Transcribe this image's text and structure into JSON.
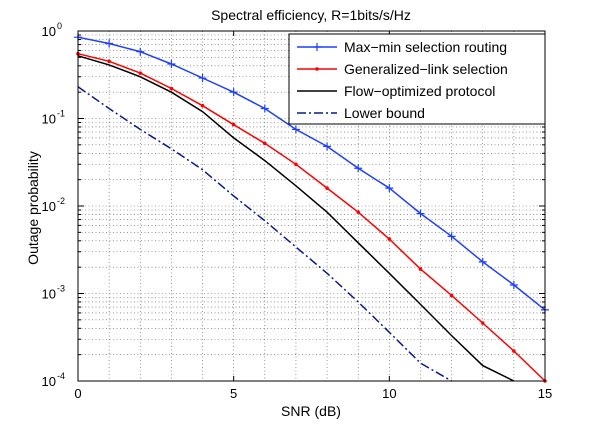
{
  "chart_data": {
    "type": "line",
    "title": "Spectral efficiency, R=1bits/s/Hz",
    "xlabel": "SNR (dB)",
    "ylabel": "Outage probability",
    "xlim": [
      0,
      15
    ],
    "ylim": [
      0.0001,
      1
    ],
    "yscale": "log",
    "grid": true,
    "legend_position": "top-right",
    "x_ticks": [
      {
        "value": 0,
        "label": "0"
      },
      {
        "value": 5,
        "label": "5"
      },
      {
        "value": 10,
        "label": "10"
      },
      {
        "value": 15,
        "label": "15"
      }
    ],
    "y_ticks": [
      {
        "value": 1,
        "base": "10",
        "exp": "0"
      },
      {
        "value": 0.1,
        "base": "10",
        "exp": "-1"
      },
      {
        "value": 0.01,
        "base": "10",
        "exp": "-2"
      },
      {
        "value": 0.001,
        "base": "10",
        "exp": "-3"
      },
      {
        "value": 0.0001,
        "base": "10",
        "exp": "-4"
      }
    ],
    "series": [
      {
        "name": "Max−min selection routing",
        "color": "#1f3fff",
        "dash": "solid",
        "marker": "plus",
        "x": [
          0,
          1,
          2,
          3,
          4,
          5,
          6,
          7,
          8,
          9,
          10,
          11,
          12,
          13,
          14,
          15
        ],
        "y": [
          0.85,
          0.72,
          0.58,
          0.42,
          0.29,
          0.2,
          0.13,
          0.075,
          0.048,
          0.027,
          0.016,
          0.0082,
          0.0045,
          0.0023,
          0.00125,
          0.00065
        ]
      },
      {
        "name": "Generalized−link selection",
        "color": "#ff0000",
        "dash": "solid",
        "marker": "dot",
        "x": [
          0,
          1,
          2,
          3,
          4,
          5,
          6,
          7,
          8,
          9,
          10,
          11,
          12,
          13,
          14,
          15
        ],
        "y": [
          0.55,
          0.45,
          0.33,
          0.22,
          0.14,
          0.085,
          0.052,
          0.03,
          0.016,
          0.0085,
          0.0042,
          0.0019,
          0.00095,
          0.00046,
          0.00022,
          0.0001
        ]
      },
      {
        "name": "Flow−optimized protocol",
        "color": "#000000",
        "dash": "solid",
        "marker": "none",
        "x": [
          0,
          1,
          2,
          3,
          4,
          5,
          6,
          7,
          8,
          9,
          10,
          11,
          12,
          13,
          14
        ],
        "y": [
          0.52,
          0.41,
          0.3,
          0.2,
          0.12,
          0.06,
          0.033,
          0.017,
          0.0085,
          0.0038,
          0.0017,
          0.00075,
          0.00033,
          0.00015,
          0.0001
        ]
      },
      {
        "name": "Lower bound",
        "color": "#0a1a8a",
        "dash": "dashdot",
        "marker": "none",
        "x": [
          0,
          1,
          2,
          3,
          4,
          5,
          6,
          7,
          8,
          9,
          10,
          11,
          12
        ],
        "y": [
          0.23,
          0.13,
          0.075,
          0.045,
          0.026,
          0.013,
          0.0068,
          0.0034,
          0.0017,
          0.0008,
          0.00036,
          0.00016,
          0.0001
        ]
      }
    ]
  }
}
